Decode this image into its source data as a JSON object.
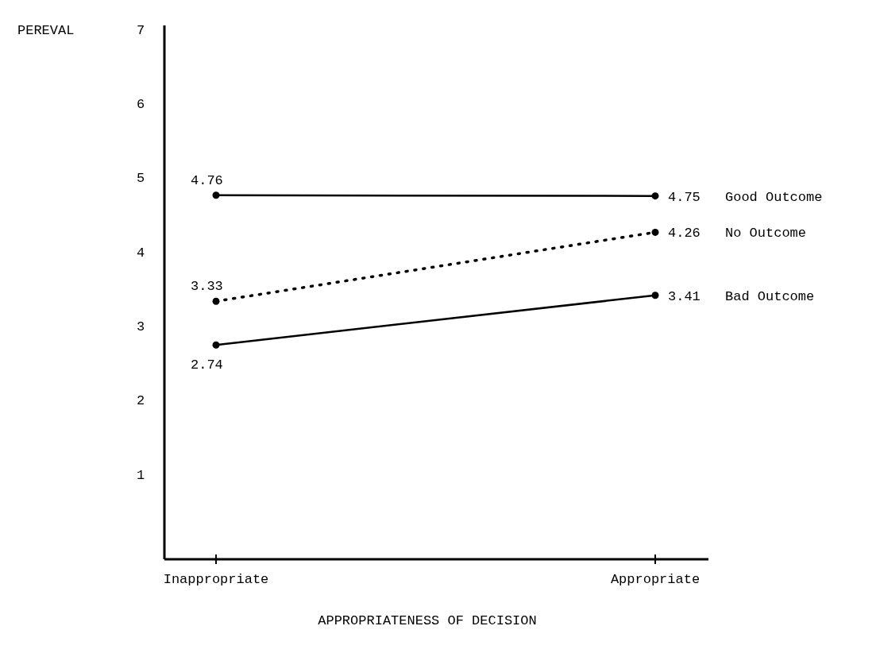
{
  "chart_data": {
    "type": "line",
    "xlabel": "APPROPRIATENESS OF DECISION",
    "ylabel": "PEREVAL",
    "categories": [
      "Inappropriate",
      "Appropriate"
    ],
    "series": [
      {
        "name": "Good Outcome",
        "color": "#000000",
        "values": [
          4.76,
          4.75
        ],
        "line_style": "solid"
      },
      {
        "name": "No Outcome",
        "color": "#000000",
        "values": [
          3.33,
          4.26
        ],
        "line_style": "dotted"
      },
      {
        "name": "Bad Outcome",
        "color": "#000000",
        "values": [
          2.74,
          3.41
        ],
        "line_style": "solid"
      }
    ],
    "ylim": [
      -0.15,
      7.05
    ],
    "yticks": [
      1,
      2,
      3,
      4,
      5,
      6,
      7
    ],
    "data_labels": true,
    "marker": "circle"
  }
}
